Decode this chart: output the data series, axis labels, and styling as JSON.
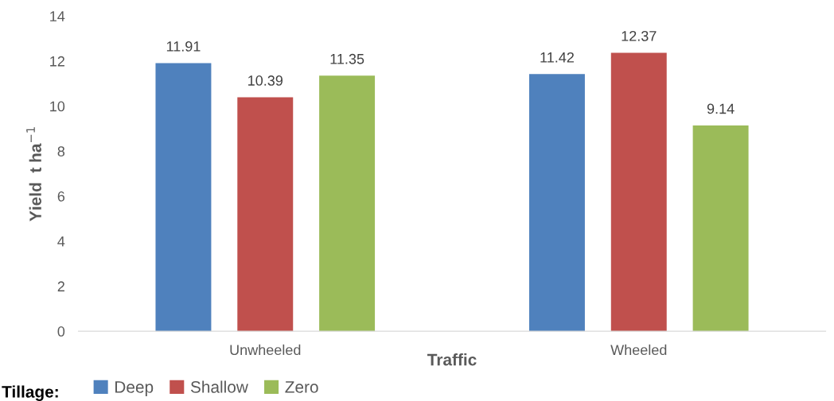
{
  "chart_data": {
    "type": "bar",
    "xlabel": "Traffic",
    "ylabel": "Yield  t ha$^{−1}$",
    "legend_title": "Tillage:",
    "categories": [
      "Unwheeled",
      "Wheeled"
    ],
    "series": [
      {
        "name": "Deep",
        "color": "#4f81bd",
        "values": [
          11.91,
          11.42
        ]
      },
      {
        "name": "Shallow",
        "color": "#c0504d",
        "values": [
          10.39,
          12.37
        ]
      },
      {
        "name": "Zero",
        "color": "#9bbb59",
        "values": [
          11.35,
          9.14
        ]
      }
    ],
    "ylim": [
      0,
      14
    ],
    "yticks": [
      0,
      2,
      4,
      6,
      8,
      10,
      12,
      14
    ],
    "data_labels": true,
    "grid": false,
    "legend": "bottom"
  }
}
